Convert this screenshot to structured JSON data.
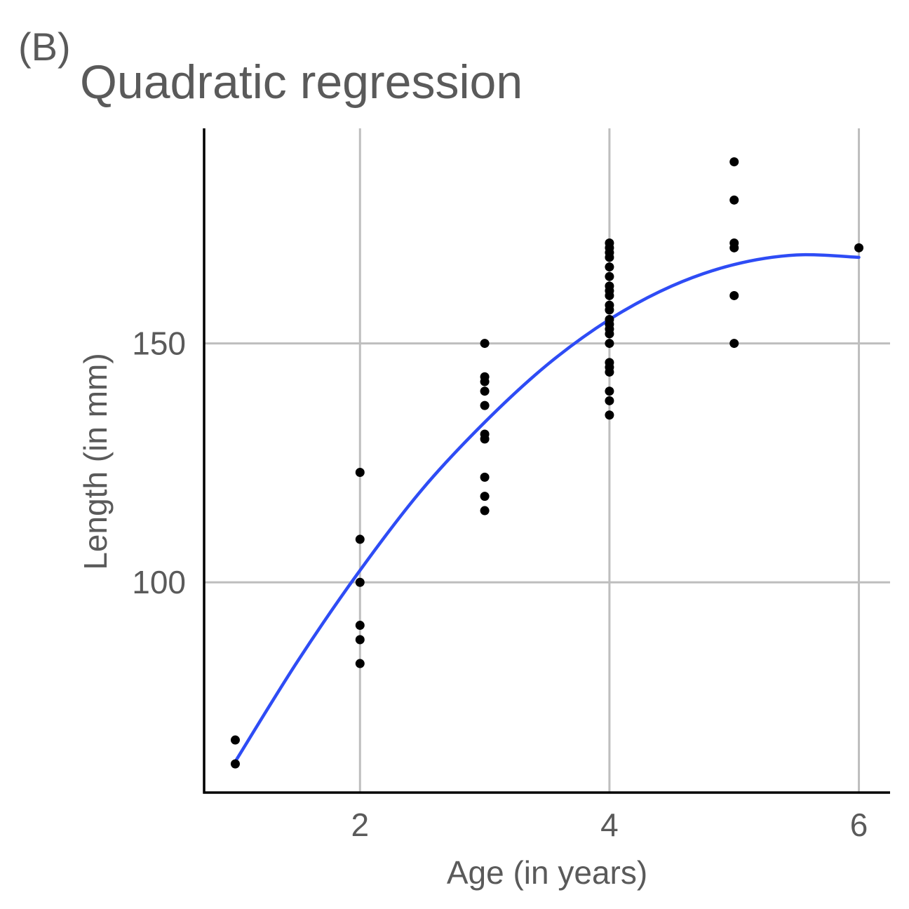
{
  "chart_data": {
    "type": "scatter",
    "panel_tag": "(B)",
    "title": "Quadratic regression",
    "xlabel": "Age (in years)",
    "ylabel": "Length (in mm)",
    "xlim": [
      0.75,
      6.25
    ],
    "ylim": [
      56,
      195
    ],
    "xticks": [
      2,
      4,
      6
    ],
    "xtick_labels": [
      "2",
      "4",
      "6"
    ],
    "yticks": [
      100,
      150
    ],
    "ytick_labels": [
      "100",
      "150"
    ],
    "grid": true,
    "legend": "none",
    "point_color": "#000000",
    "curve_color": "#2e4cf5",
    "points": [
      {
        "x": 1,
        "y": 62
      },
      {
        "x": 1,
        "y": 67
      },
      {
        "x": 2,
        "y": 83
      },
      {
        "x": 2,
        "y": 88
      },
      {
        "x": 2,
        "y": 91
      },
      {
        "x": 2,
        "y": 100
      },
      {
        "x": 2,
        "y": 109
      },
      {
        "x": 2,
        "y": 123
      },
      {
        "x": 3,
        "y": 115
      },
      {
        "x": 3,
        "y": 118
      },
      {
        "x": 3,
        "y": 122
      },
      {
        "x": 3,
        "y": 130
      },
      {
        "x": 3,
        "y": 131
      },
      {
        "x": 3,
        "y": 137
      },
      {
        "x": 3,
        "y": 140
      },
      {
        "x": 3,
        "y": 142
      },
      {
        "x": 3,
        "y": 143
      },
      {
        "x": 3,
        "y": 150
      },
      {
        "x": 4,
        "y": 135
      },
      {
        "x": 4,
        "y": 138
      },
      {
        "x": 4,
        "y": 140
      },
      {
        "x": 4,
        "y": 144
      },
      {
        "x": 4,
        "y": 145
      },
      {
        "x": 4,
        "y": 146
      },
      {
        "x": 4,
        "y": 150
      },
      {
        "x": 4,
        "y": 152
      },
      {
        "x": 4,
        "y": 153
      },
      {
        "x": 4,
        "y": 154
      },
      {
        "x": 4,
        "y": 155
      },
      {
        "x": 4,
        "y": 157
      },
      {
        "x": 4,
        "y": 158
      },
      {
        "x": 4,
        "y": 160
      },
      {
        "x": 4,
        "y": 161
      },
      {
        "x": 4,
        "y": 162
      },
      {
        "x": 4,
        "y": 164
      },
      {
        "x": 4,
        "y": 166
      },
      {
        "x": 4,
        "y": 168
      },
      {
        "x": 4,
        "y": 169
      },
      {
        "x": 4,
        "y": 170
      },
      {
        "x": 4,
        "y": 171
      },
      {
        "x": 5,
        "y": 150
      },
      {
        "x": 5,
        "y": 160
      },
      {
        "x": 5,
        "y": 170
      },
      {
        "x": 5,
        "y": 171
      },
      {
        "x": 5,
        "y": 180
      },
      {
        "x": 5,
        "y": 188
      },
      {
        "x": 6,
        "y": 170
      }
    ],
    "fitted_curve": [
      {
        "x": 1,
        "y": 62.5
      },
      {
        "x": 1.5,
        "y": 83.5
      },
      {
        "x": 2,
        "y": 102.5
      },
      {
        "x": 2.5,
        "y": 119.5
      },
      {
        "x": 3,
        "y": 133.5
      },
      {
        "x": 3.5,
        "y": 145.5
      },
      {
        "x": 4,
        "y": 155.0
      },
      {
        "x": 4.5,
        "y": 162.0
      },
      {
        "x": 5,
        "y": 166.5
      },
      {
        "x": 5.5,
        "y": 168.5
      },
      {
        "x": 6,
        "y": 168.0
      }
    ]
  }
}
